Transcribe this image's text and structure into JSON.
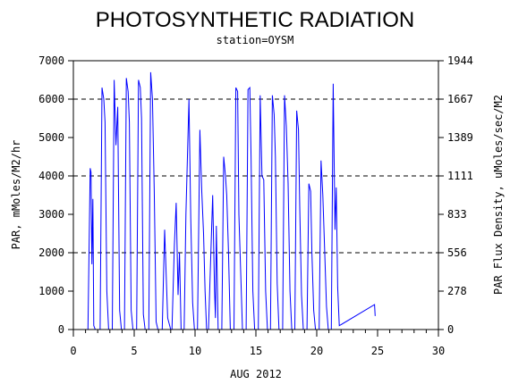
{
  "chart_data": {
    "type": "line",
    "title": "PHOTOSYNTHETIC RADIATION",
    "subtitle": "station=OYSM",
    "xlabel": "AUG 2012",
    "ylabel": "PAR, mMoles/M2/hr",
    "y2label": "PAR Flux Density, uMoles/sec/M2",
    "xlim": [
      0,
      30
    ],
    "ylim": [
      0,
      7000
    ],
    "x_ticks": [
      "0",
      "5",
      "10",
      "15",
      "20",
      "25",
      "30"
    ],
    "y_ticks": [
      "0",
      "1000",
      "2000",
      "3000",
      "4000",
      "5000",
      "6000",
      "7000"
    ],
    "y2_ticks": [
      "0",
      "278",
      "556",
      "833",
      "1111",
      "1389",
      "1667",
      "1944"
    ],
    "gridlines_y": [
      2000,
      4000,
      6000
    ],
    "line_color": "#0000ff",
    "series": [
      {
        "x": [
          1.2,
          1.38,
          1.45,
          1.52,
          1.6,
          1.68,
          1.8,
          2.2,
          2.35,
          2.5,
          2.6,
          2.75,
          2.9,
          3.2,
          3.35,
          3.5,
          3.65,
          3.8,
          3.95,
          4.2,
          4.35,
          4.5,
          4.6,
          4.75,
          4.9,
          5.2,
          5.35,
          5.5,
          5.6,
          5.75,
          5.9,
          6.2,
          6.35,
          6.5,
          6.65,
          6.8,
          6.95,
          7.3,
          7.5,
          7.75,
          8.0,
          8.1,
          8.3,
          8.45,
          8.6,
          8.72,
          8.85,
          9.1,
          9.25,
          9.5,
          9.65,
          9.8,
          9.95,
          10.2,
          10.4,
          10.55,
          10.7,
          10.82,
          10.95,
          11.1,
          11.25,
          11.45,
          11.6,
          11.68,
          11.75,
          11.9,
          12.2,
          12.35,
          12.5,
          12.6,
          12.75,
          12.9,
          13.2,
          13.35,
          13.5,
          13.6,
          13.75,
          13.9,
          14.2,
          14.35,
          14.5,
          14.6,
          14.75,
          14.9,
          15.2,
          15.35,
          15.5,
          15.65,
          15.8,
          15.95,
          16.2,
          16.35,
          16.5,
          16.6,
          16.75,
          16.9,
          17.2,
          17.35,
          17.5,
          17.65,
          17.8,
          17.95,
          18.2,
          18.35,
          18.5,
          18.6,
          18.75,
          18.9,
          19.2,
          19.35,
          19.5,
          19.6,
          19.75,
          19.9,
          20.2,
          20.35,
          20.5,
          20.65,
          20.8,
          20.95,
          21.2,
          21.35,
          21.5,
          21.6,
          21.72,
          21.85,
          24.75,
          24.8
        ],
        "y": [
          0,
          4200,
          4100,
          1700,
          3400,
          100,
          0,
          0,
          6300,
          6000,
          5400,
          1000,
          0,
          0,
          6500,
          4800,
          5800,
          500,
          0,
          0,
          6550,
          6200,
          5400,
          500,
          0,
          0,
          6500,
          6300,
          5500,
          400,
          0,
          0,
          6700,
          6000,
          3600,
          200,
          0,
          0,
          2600,
          300,
          0,
          0,
          2200,
          3300,
          900,
          2000,
          0,
          0,
          3000,
          6000,
          2900,
          700,
          0,
          0,
          5200,
          3600,
          2500,
          1000,
          0,
          0,
          1500,
          3500,
          1000,
          300,
          2700,
          0,
          0,
          4500,
          4000,
          3500,
          2000,
          0,
          0,
          6300,
          6200,
          3000,
          1500,
          0,
          0,
          6250,
          6300,
          4500,
          1000,
          0,
          0,
          6100,
          4000,
          3900,
          1000,
          0,
          0,
          6100,
          5600,
          4500,
          1200,
          0,
          0,
          6100,
          5300,
          3800,
          1000,
          0,
          0,
          5700,
          5200,
          3200,
          900,
          0,
          0,
          3800,
          3600,
          2000,
          500,
          0,
          0,
          4400,
          3500,
          2100,
          600,
          0,
          0,
          6400,
          2600,
          3700,
          1100,
          100,
          650,
          350
        ]
      }
    ]
  }
}
